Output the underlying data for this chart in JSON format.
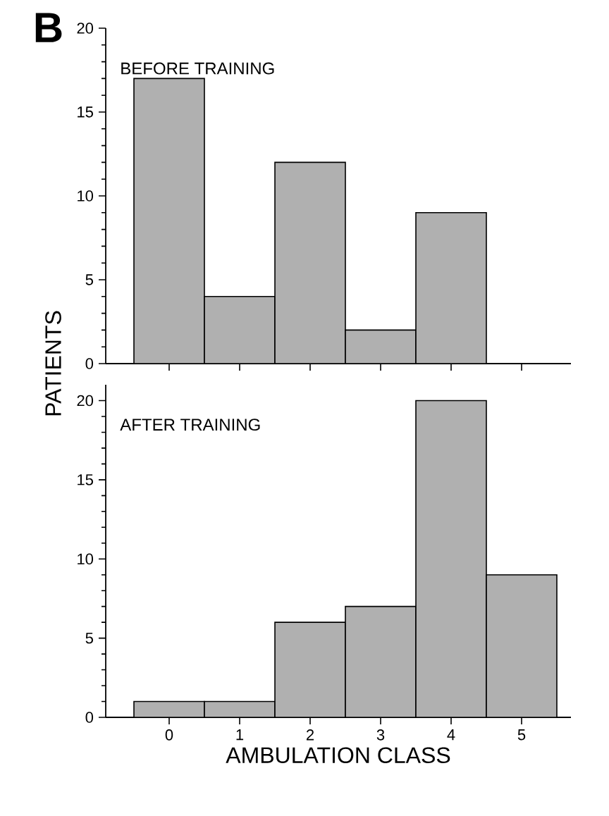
{
  "chart_data": [
    {
      "type": "bar",
      "title": "BEFORE TRAINING",
      "ylabel": "PATIENTS",
      "annotations": [
        "B"
      ],
      "categories": [
        "0",
        "1",
        "2",
        "3",
        "4",
        "5"
      ],
      "values": [
        17,
        4,
        12,
        2,
        9,
        null
      ],
      "color": "#b0b0b0",
      "ylim": [
        0,
        20
      ],
      "yticks": [
        0,
        5,
        10,
        15,
        20
      ],
      "tick_labels": "y"
    },
    {
      "type": "bar",
      "title": "AFTER TRAINING",
      "xlabel": "AMBULATION CLASS",
      "categories": [
        "0",
        "1",
        "2",
        "3",
        "4",
        "5"
      ],
      "values": [
        1,
        1,
        6,
        7,
        20,
        9
      ],
      "color": "#b0b0b0",
      "ylim": [
        0,
        21
      ],
      "yticks": [
        0,
        5,
        10,
        15,
        20
      ]
    }
  ]
}
